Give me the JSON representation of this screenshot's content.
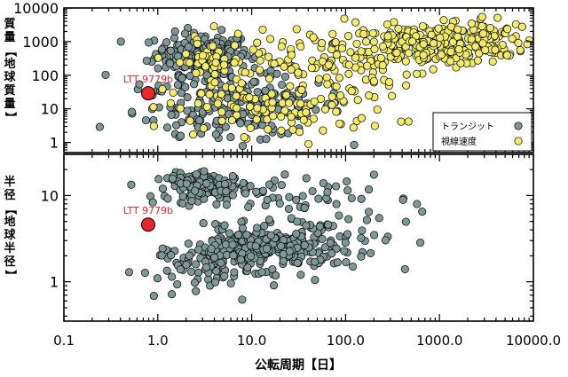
{
  "chart_data": [
    {
      "type": "scatter",
      "panel": "top",
      "ylabel": "質量【地球質量】",
      "xlabel": "",
      "xscale": "log",
      "yscale": "log",
      "xlim": [
        0.1,
        10000
      ],
      "ylim": [
        0.5,
        10000
      ],
      "x_ticks": [
        "0.1",
        "1.0",
        "10.0",
        "100.0",
        "1000.0",
        "10000.0"
      ],
      "y_ticks": [
        "1",
        "10",
        "100",
        "1000",
        "10000"
      ],
      "legend": {
        "position": "bottom-right",
        "entries": [
          {
            "label": "トランジット",
            "color": "#7f9797"
          },
          {
            "label": "視線速度",
            "color": "#f2ea6a"
          }
        ]
      },
      "highlight": {
        "label": "LTT 9779b",
        "x": 0.79,
        "y": 29,
        "color": "#e8262b"
      },
      "series": [
        {
          "name": "トランジット",
          "color": "#7f9797",
          "clusters": [
            {
              "cx": 3.0,
              "cy": 450,
              "sx": 0.25,
              "sy": 0.3,
              "n": 200
            },
            {
              "cx": 4.0,
              "cy": 80,
              "sx": 0.4,
              "sy": 0.45,
              "n": 60
            },
            {
              "cx": 12,
              "cy": 12,
              "sx": 0.45,
              "sy": 0.45,
              "n": 110
            },
            {
              "cx": 5,
              "cy": 4,
              "sx": 0.5,
              "sy": 0.3,
              "n": 35
            },
            {
              "cx": 1.5,
              "cy": 6,
              "sx": 0.3,
              "sy": 0.35,
              "n": 20
            }
          ]
        },
        {
          "name": "視線速度",
          "color": "#f2ea6a",
          "clusters": [
            {
              "cx": 800,
              "cy": 800,
              "sx": 0.45,
              "sy": 0.3,
              "n": 240
            },
            {
              "cx": 3000,
              "cy": 1200,
              "sx": 0.25,
              "sy": 0.35,
              "n": 70
            },
            {
              "cx": 40,
              "cy": 250,
              "sx": 0.6,
              "sy": 0.55,
              "n": 120
            },
            {
              "cx": 20,
              "cy": 10,
              "sx": 0.6,
              "sy": 0.4,
              "n": 110
            },
            {
              "cx": 3.5,
              "cy": 250,
              "sx": 0.18,
              "sy": 0.3,
              "n": 45
            }
          ]
        }
      ]
    },
    {
      "type": "scatter",
      "panel": "bottom",
      "ylabel": "半径【地球半径】",
      "xlabel": "公転周期【日】",
      "xscale": "log",
      "yscale": "log",
      "xlim": [
        0.1,
        10000
      ],
      "ylim": [
        0.35,
        30
      ],
      "x_ticks": [
        "0.1",
        "1.0",
        "10.0",
        "100.0",
        "1000.0",
        "10000.0"
      ],
      "y_ticks": [
        "1",
        "10"
      ],
      "highlight": {
        "label": "LTT 9779b",
        "x": 0.79,
        "y": 4.6,
        "color": "#e8262b"
      },
      "series": [
        {
          "name": "トランジット",
          "color": "#7f9797",
          "clusters": [
            {
              "cx": 3.5,
              "cy": 13,
              "sx": 0.22,
              "sy": 0.07,
              "n": 130
            },
            {
              "cx": 12,
              "cy": 2.4,
              "sx": 0.4,
              "sy": 0.12,
              "n": 250
            },
            {
              "cx": 40,
              "cy": 4,
              "sx": 0.55,
              "sy": 0.25,
              "n": 90
            },
            {
              "cx": 2.5,
              "cy": 1.3,
              "sx": 0.3,
              "sy": 0.15,
              "n": 60
            },
            {
              "cx": 20,
              "cy": 10,
              "sx": 0.5,
              "sy": 0.12,
              "n": 40
            }
          ]
        }
      ]
    }
  ]
}
